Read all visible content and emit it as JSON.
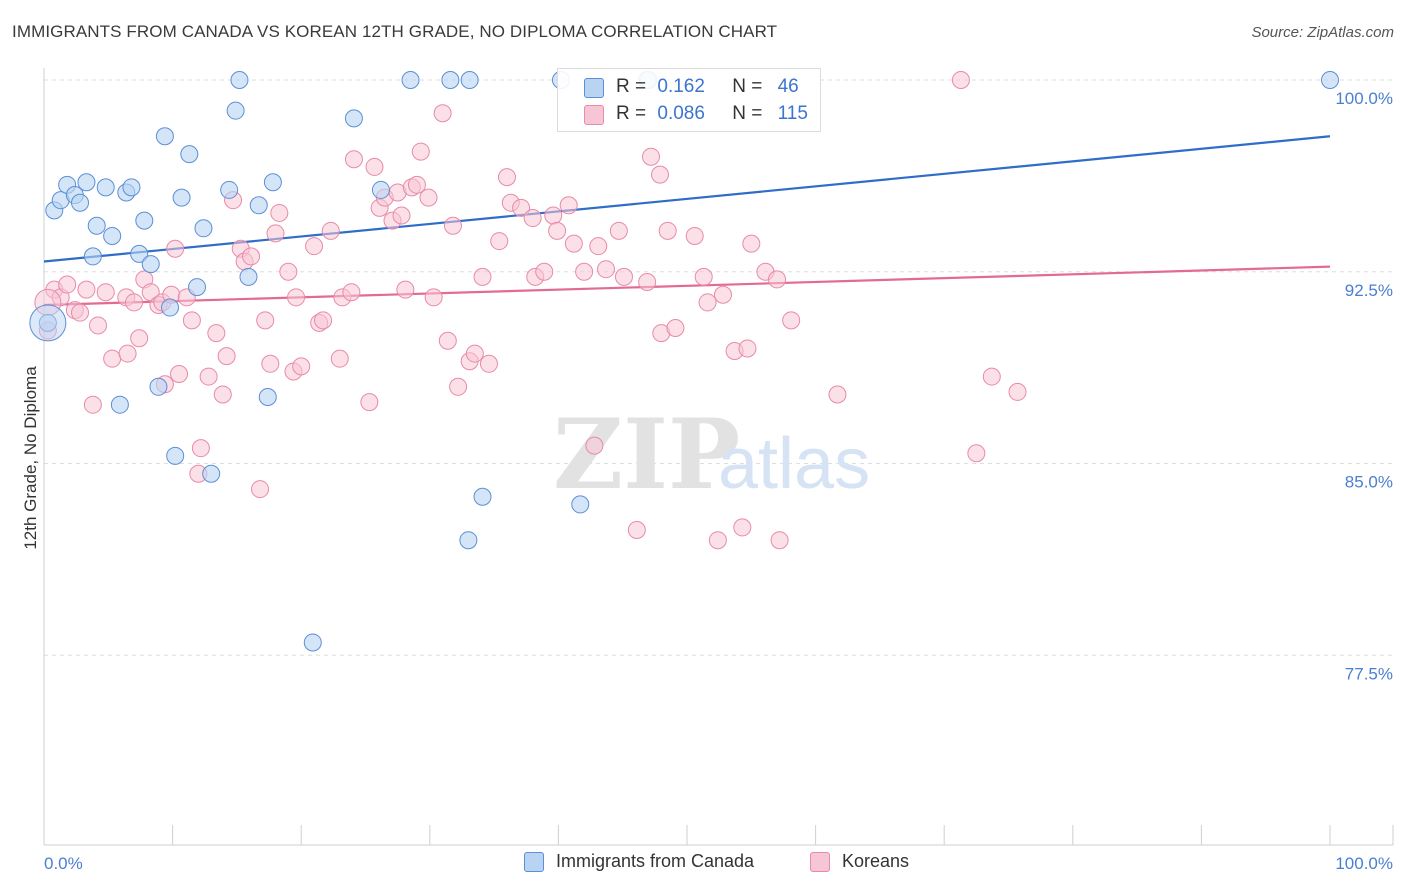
{
  "header": {
    "title": "IMMIGRANTS FROM CANADA VS KOREAN 12TH GRADE, NO DIPLOMA CORRELATION CHART",
    "source": "Source: ZipAtlas.com"
  },
  "watermark": {
    "zip": "ZIP",
    "atlas": "atlas"
  },
  "legend_top": {
    "rows": [
      {
        "r_label": "R =",
        "r_value": "0.162",
        "n_label": "N =",
        "n_value": "46"
      },
      {
        "r_label": "R =",
        "r_value": "0.086",
        "n_label": "N =",
        "n_value": "115"
      }
    ]
  },
  "colors": {
    "canada_fill": "#b9d3f3",
    "canada_stroke": "#5b8fd6",
    "canada_line": "#2f6dc8",
    "korean_fill": "#f7c6d6",
    "korean_stroke": "#e88aaa",
    "korean_line": "#e36a93",
    "tick_text": "#4a7fd0",
    "grid": "#dedede"
  },
  "chart_data": {
    "type": "scatter",
    "title": "IMMIGRANTS FROM CANADA VS KOREAN 12TH GRADE, NO DIPLOMA CORRELATION CHART",
    "xlabel": "",
    "ylabel": "12th Grade, No Diploma",
    "x_tick_labels": [
      "0.0%",
      "100.0%"
    ],
    "y_tick_labels": [
      "100.0%",
      "92.5%",
      "85.0%",
      "77.5%"
    ],
    "y_ticks": [
      100.0,
      92.5,
      85.0,
      77.5
    ],
    "xlim": [
      0,
      100
    ],
    "ylim": [
      70.5,
      101.2
    ],
    "grid": true,
    "legend_position": "bottom",
    "series": [
      {
        "name": "Immigrants from Canada",
        "R": 0.162,
        "N": 46,
        "trend": {
          "x0": 0,
          "y0": 92.9,
          "x1": 100,
          "y1": 97.8
        },
        "points": [
          [
            0.3,
            90.5
          ],
          [
            0.8,
            94.9
          ],
          [
            1.3,
            95.3
          ],
          [
            1.8,
            95.9
          ],
          [
            2.4,
            95.5
          ],
          [
            2.8,
            95.2
          ],
          [
            3.3,
            96.0
          ],
          [
            3.8,
            93.1
          ],
          [
            4.1,
            94.3
          ],
          [
            4.8,
            95.8
          ],
          [
            5.3,
            93.9
          ],
          [
            5.9,
            87.3
          ],
          [
            6.4,
            95.6
          ],
          [
            6.8,
            95.8
          ],
          [
            7.4,
            93.2
          ],
          [
            7.8,
            94.5
          ],
          [
            8.3,
            92.8
          ],
          [
            8.9,
            88.0
          ],
          [
            9.4,
            97.8
          ],
          [
            9.8,
            91.1
          ],
          [
            10.2,
            85.3
          ],
          [
            10.7,
            95.4
          ],
          [
            11.3,
            97.1
          ],
          [
            11.9,
            91.9
          ],
          [
            12.4,
            94.2
          ],
          [
            13.0,
            84.6
          ],
          [
            14.4,
            95.7
          ],
          [
            14.9,
            98.8
          ],
          [
            15.2,
            100.0
          ],
          [
            15.9,
            92.3
          ],
          [
            16.7,
            95.1
          ],
          [
            17.4,
            87.6
          ],
          [
            17.8,
            96.0
          ],
          [
            20.9,
            78.0
          ],
          [
            24.1,
            98.5
          ],
          [
            26.2,
            95.7
          ],
          [
            28.5,
            100.0
          ],
          [
            31.6,
            100.0
          ],
          [
            33.1,
            100.0
          ],
          [
            33.0,
            82.0
          ],
          [
            34.1,
            83.7
          ],
          [
            40.2,
            100.0
          ],
          [
            41.7,
            83.4
          ],
          [
            46.9,
            100.0
          ],
          [
            47.0,
            100.0
          ],
          [
            100.0,
            100.0
          ]
        ],
        "large_points": [
          [
            0.3,
            90.5
          ]
        ]
      },
      {
        "name": "Koreans",
        "R": 0.086,
        "N": 115,
        "trend": {
          "x0": 0,
          "y0": 91.2,
          "x1": 100,
          "y1": 92.7
        },
        "points": [
          [
            0.3,
            90.2
          ],
          [
            0.8,
            91.8
          ],
          [
            1.3,
            91.5
          ],
          [
            1.8,
            92.0
          ],
          [
            2.4,
            91.0
          ],
          [
            2.8,
            90.9
          ],
          [
            3.3,
            91.8
          ],
          [
            3.8,
            87.3
          ],
          [
            4.2,
            90.4
          ],
          [
            4.8,
            91.7
          ],
          [
            5.3,
            89.1
          ],
          [
            6.4,
            91.5
          ],
          [
            6.5,
            89.3
          ],
          [
            7.0,
            91.3
          ],
          [
            7.4,
            89.9
          ],
          [
            7.8,
            92.2
          ],
          [
            8.3,
            91.7
          ],
          [
            8.9,
            91.2
          ],
          [
            9.2,
            91.3
          ],
          [
            9.4,
            88.1
          ],
          [
            9.9,
            91.6
          ],
          [
            10.2,
            93.4
          ],
          [
            10.5,
            88.5
          ],
          [
            11.1,
            91.5
          ],
          [
            11.5,
            90.6
          ],
          [
            12.0,
            84.6
          ],
          [
            12.2,
            85.6
          ],
          [
            12.8,
            88.4
          ],
          [
            13.4,
            90.1
          ],
          [
            13.9,
            87.7
          ],
          [
            14.2,
            89.2
          ],
          [
            14.7,
            95.3
          ],
          [
            15.3,
            93.4
          ],
          [
            15.6,
            92.9
          ],
          [
            16.1,
            93.1
          ],
          [
            16.8,
            84.0
          ],
          [
            17.2,
            90.6
          ],
          [
            17.6,
            88.9
          ],
          [
            18.0,
            94.0
          ],
          [
            18.3,
            94.8
          ],
          [
            19.0,
            92.5
          ],
          [
            19.4,
            88.6
          ],
          [
            19.6,
            91.5
          ],
          [
            20.0,
            88.8
          ],
          [
            21.0,
            93.5
          ],
          [
            21.4,
            90.5
          ],
          [
            21.7,
            90.6
          ],
          [
            22.3,
            94.1
          ],
          [
            23.0,
            89.1
          ],
          [
            23.2,
            91.5
          ],
          [
            23.9,
            91.7
          ],
          [
            24.1,
            96.9
          ],
          [
            25.3,
            87.4
          ],
          [
            25.7,
            96.6
          ],
          [
            26.1,
            95.0
          ],
          [
            26.5,
            95.4
          ],
          [
            27.1,
            94.5
          ],
          [
            27.5,
            95.6
          ],
          [
            27.8,
            94.7
          ],
          [
            28.1,
            91.8
          ],
          [
            28.6,
            95.8
          ],
          [
            29.0,
            95.9
          ],
          [
            29.3,
            97.2
          ],
          [
            29.9,
            95.4
          ],
          [
            30.3,
            91.5
          ],
          [
            31.0,
            98.7
          ],
          [
            31.4,
            89.8
          ],
          [
            31.8,
            94.3
          ],
          [
            32.2,
            88.0
          ],
          [
            33.1,
            89.0
          ],
          [
            33.5,
            89.3
          ],
          [
            34.1,
            92.3
          ],
          [
            34.6,
            88.9
          ],
          [
            35.4,
            93.7
          ],
          [
            36.0,
            96.2
          ],
          [
            36.3,
            95.2
          ],
          [
            37.1,
            95.0
          ],
          [
            38.0,
            94.6
          ],
          [
            38.2,
            92.3
          ],
          [
            38.9,
            92.5
          ],
          [
            39.6,
            94.7
          ],
          [
            39.9,
            94.1
          ],
          [
            40.8,
            95.1
          ],
          [
            41.2,
            93.6
          ],
          [
            42.0,
            92.5
          ],
          [
            42.8,
            85.7
          ],
          [
            43.1,
            93.5
          ],
          [
            43.7,
            92.6
          ],
          [
            44.7,
            94.1
          ],
          [
            45.1,
            92.3
          ],
          [
            46.1,
            82.4
          ],
          [
            46.9,
            92.1
          ],
          [
            47.2,
            97.0
          ],
          [
            47.9,
            96.3
          ],
          [
            48.0,
            90.1
          ],
          [
            48.5,
            94.1
          ],
          [
            49.1,
            90.3
          ],
          [
            50.6,
            93.9
          ],
          [
            51.3,
            92.3
          ],
          [
            51.6,
            91.3
          ],
          [
            52.4,
            82.0
          ],
          [
            52.8,
            91.6
          ],
          [
            53.7,
            89.4
          ],
          [
            54.3,
            82.5
          ],
          [
            54.7,
            89.5
          ],
          [
            55.0,
            93.6
          ],
          [
            56.1,
            92.5
          ],
          [
            57.0,
            92.2
          ],
          [
            57.2,
            82.0
          ],
          [
            58.1,
            90.6
          ],
          [
            61.7,
            87.7
          ],
          [
            71.3,
            100.0
          ],
          [
            72.5,
            85.4
          ],
          [
            73.7,
            88.4
          ],
          [
            75.7,
            87.8
          ]
        ]
      }
    ]
  },
  "legend_bottom": {
    "items": [
      {
        "label": "Immigrants from Canada"
      },
      {
        "label": "Koreans"
      }
    ]
  }
}
